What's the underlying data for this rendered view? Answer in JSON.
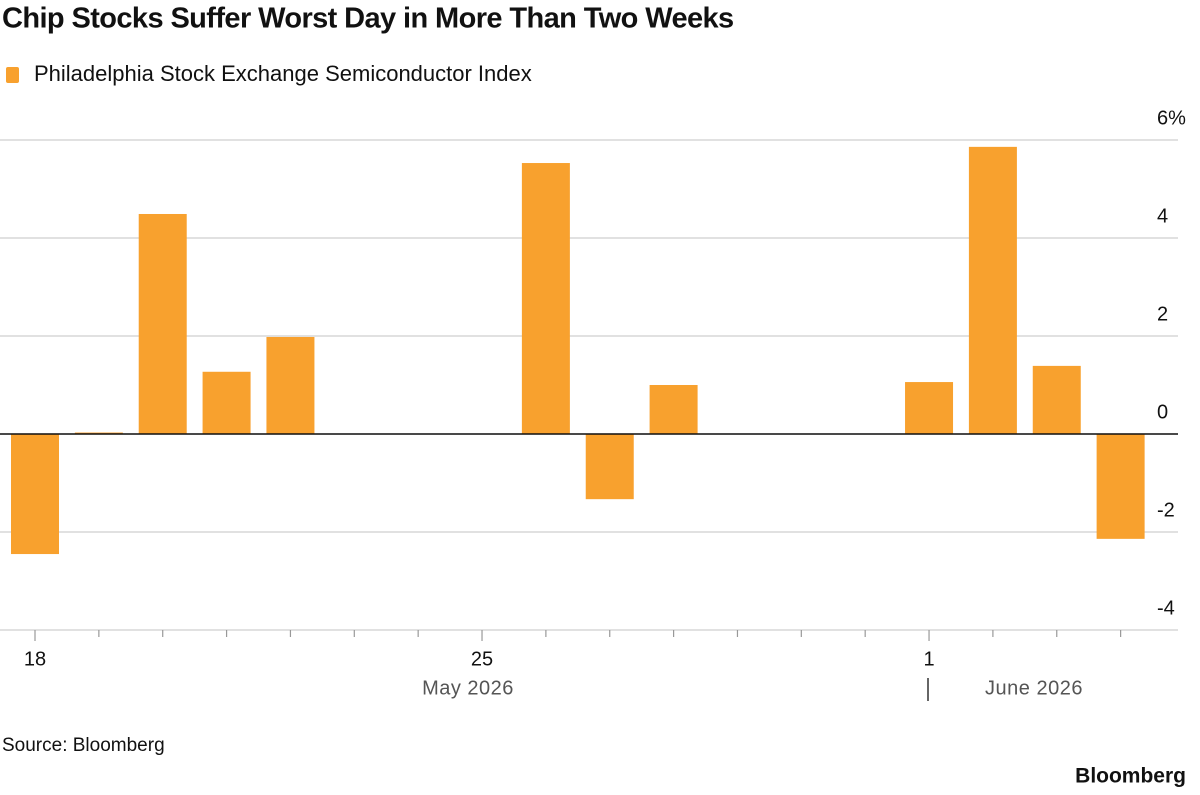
{
  "chart_data": {
    "type": "bar",
    "title": "Chip Stocks Suffer Worst Day in More Than Two Weeks",
    "categories": [
      "18",
      null,
      null,
      null,
      null,
      null,
      null,
      "25",
      null,
      null,
      null,
      null,
      null,
      null,
      "1",
      null,
      null,
      null
    ],
    "series": [
      {
        "name": "Philadelphia Stock Exchange Semiconductor Index",
        "color": "#f8a12e",
        "values": [
          -2.45,
          0.03,
          4.49,
          1.27,
          1.98,
          null,
          null,
          null,
          5.53,
          -1.33,
          1.0,
          null,
          null,
          null,
          1.06,
          5.86,
          1.39,
          -2.14
        ]
      }
    ],
    "period_labels": [
      "May 2026",
      "June 2026"
    ],
    "ylim": [
      -4,
      6
    ],
    "yticks": [
      {
        "value": 6,
        "label": "6%"
      },
      4,
      2,
      0,
      -2,
      -4
    ],
    "grid": true,
    "legend": "top-left",
    "source": "Source: Bloomberg",
    "brand": "Bloomberg"
  }
}
